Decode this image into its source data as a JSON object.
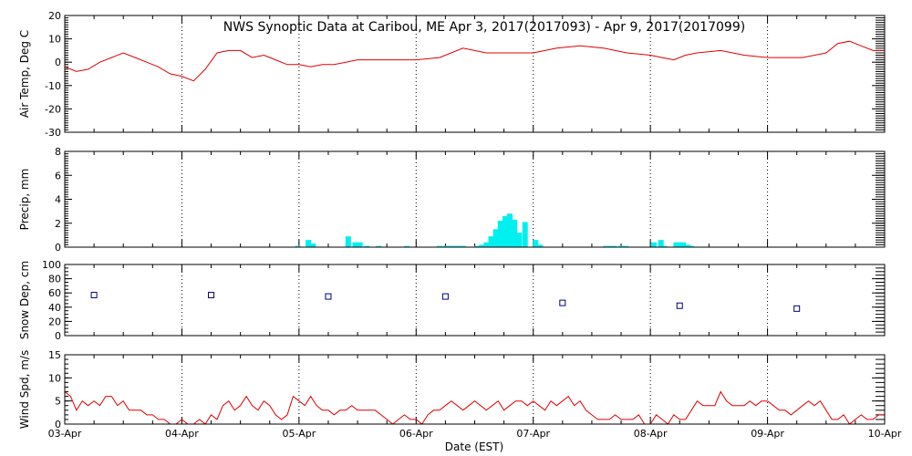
{
  "chart_data": {
    "title": "NWS Synoptic Data at Caribou, ME   Apr  3, 2017(2017093) - Apr  9, 2017(2017099)",
    "xlabel": "Date (EST)",
    "x_tick_labels": [
      "03-Apr",
      "04-Apr",
      "05-Apr",
      "06-Apr",
      "07-Apr",
      "08-Apr",
      "09-Apr",
      "10-Apr"
    ],
    "x_range_days": [
      0,
      7
    ],
    "grid": "vertical dotted lines at each day",
    "colors": {
      "temp": "#e00000",
      "precip": "#00f0f0",
      "snow": "#000080",
      "wind": "#e00000"
    },
    "panels": [
      {
        "name": "temp",
        "type": "line",
        "ylabel": "Air Temp, Deg C",
        "ylim": [
          -30,
          20
        ],
        "yticks": [
          -30,
          -20,
          -10,
          0,
          10,
          20
        ],
        "x": [
          0,
          0.1,
          0.2,
          0.3,
          0.4,
          0.5,
          0.6,
          0.7,
          0.8,
          0.9,
          1.0,
          1.1,
          1.2,
          1.3,
          1.4,
          1.5,
          1.6,
          1.7,
          1.8,
          1.9,
          2.0,
          2.1,
          2.2,
          2.3,
          2.4,
          2.5,
          2.6,
          2.7,
          2.8,
          2.9,
          3.0,
          3.2,
          3.4,
          3.6,
          3.8,
          4.0,
          4.2,
          4.4,
          4.6,
          4.8,
          5.0,
          5.1,
          5.2,
          5.3,
          5.4,
          5.6,
          5.8,
          6.0,
          6.1,
          6.2,
          6.3,
          6.5,
          6.6,
          6.7,
          6.8,
          6.9,
          7.0
        ],
        "values": [
          -2,
          -4,
          -3,
          0,
          2,
          4,
          2,
          0,
          -2,
          -5,
          -6,
          -8,
          -3,
          4,
          5,
          5,
          2,
          3,
          1,
          -1,
          -1,
          -2,
          -1,
          -1,
          0,
          1,
          1,
          1,
          1,
          1,
          1,
          2,
          6,
          4,
          4,
          4,
          6,
          7,
          6,
          4,
          3,
          2,
          1,
          3,
          4,
          5,
          3,
          2,
          2,
          2,
          2,
          4,
          8,
          9,
          7,
          5,
          5
        ]
      },
      {
        "name": "precip",
        "type": "bar",
        "ylabel": "Precip, mm",
        "ylim": [
          0,
          8
        ],
        "yticks": [
          0,
          2,
          4,
          6,
          8
        ],
        "x": [
          1.99,
          2.08,
          2.12,
          2.42,
          2.48,
          2.52,
          2.58,
          2.68,
          2.92,
          3.2,
          3.25,
          3.28,
          3.31,
          3.34,
          3.37,
          3.4,
          3.52,
          3.56,
          3.6,
          3.64,
          3.68,
          3.72,
          3.76,
          3.8,
          3.84,
          3.88,
          3.93,
          4.02,
          4.06,
          4.62,
          4.66,
          4.69,
          4.75,
          4.79,
          5.03,
          5.09,
          5.12,
          5.22,
          5.25,
          5.28,
          5.32,
          5.35
        ],
        "values": [
          0.1,
          0.6,
          0.3,
          0.9,
          0.4,
          0.4,
          0.1,
          0.1,
          0.1,
          0.1,
          0.1,
          0.1,
          0.1,
          0.1,
          0.1,
          0.1,
          0.1,
          0.2,
          0.4,
          0.9,
          1.5,
          2.2,
          2.6,
          2.8,
          2.3,
          1.2,
          2.1,
          0.6,
          0.2,
          0.1,
          0.1,
          0.1,
          0.1,
          0.1,
          0.4,
          0.6,
          0.1,
          0.4,
          0.4,
          0.4,
          0.2,
          0.1
        ]
      },
      {
        "name": "snow",
        "type": "scatter",
        "ylabel": "Snow Dep, cm",
        "ylim": [
          0,
          100
        ],
        "yticks": [
          0,
          20,
          40,
          60,
          80,
          100
        ],
        "x": [
          0.25,
          1.25,
          2.25,
          3.25,
          4.25,
          5.25,
          6.25
        ],
        "values": [
          57,
          57,
          55,
          55,
          46,
          42,
          38
        ]
      },
      {
        "name": "wind",
        "type": "line",
        "ylabel": "Wind Spd, m/s",
        "ylim": [
          0,
          15
        ],
        "yticks": [
          0,
          5,
          10,
          15
        ],
        "x": [
          0,
          0.05,
          0.1,
          0.15,
          0.2,
          0.25,
          0.3,
          0.35,
          0.4,
          0.45,
          0.5,
          0.55,
          0.6,
          0.65,
          0.7,
          0.75,
          0.8,
          0.85,
          0.9,
          0.95,
          1.0,
          1.05,
          1.1,
          1.15,
          1.2,
          1.25,
          1.3,
          1.35,
          1.4,
          1.45,
          1.5,
          1.55,
          1.6,
          1.65,
          1.7,
          1.75,
          1.8,
          1.85,
          1.9,
          1.95,
          2.0,
          2.05,
          2.1,
          2.15,
          2.2,
          2.25,
          2.3,
          2.35,
          2.4,
          2.45,
          2.5,
          2.55,
          2.6,
          2.65,
          2.7,
          2.75,
          2.8,
          2.85,
          2.9,
          2.95,
          3.0,
          3.05,
          3.1,
          3.15,
          3.2,
          3.25,
          3.3,
          3.35,
          3.4,
          3.45,
          3.5,
          3.55,
          3.6,
          3.65,
          3.7,
          3.75,
          3.8,
          3.85,
          3.9,
          3.95,
          4.0,
          4.05,
          4.1,
          4.15,
          4.2,
          4.25,
          4.3,
          4.35,
          4.4,
          4.45,
          4.5,
          4.55,
          4.6,
          4.65,
          4.7,
          4.75,
          4.8,
          4.85,
          4.9,
          4.95,
          5.0,
          5.05,
          5.1,
          5.15,
          5.2,
          5.25,
          5.3,
          5.35,
          5.4,
          5.45,
          5.5,
          5.55,
          5.6,
          5.65,
          5.7,
          5.75,
          5.8,
          5.85,
          5.9,
          5.95,
          6.0,
          6.05,
          6.1,
          6.15,
          6.2,
          6.25,
          6.3,
          6.35,
          6.4,
          6.45,
          6.5,
          6.55,
          6.6,
          6.65,
          6.7,
          6.75,
          6.8,
          6.85,
          6.9,
          6.95,
          7.0
        ],
        "values": [
          7,
          6,
          3,
          5,
          4,
          5,
          4,
          6,
          6,
          4,
          5,
          3,
          3,
          3,
          2,
          2,
          1,
          1,
          0,
          0,
          1,
          0,
          0,
          1,
          0,
          2,
          1,
          4,
          5,
          3,
          4,
          6,
          4,
          3,
          5,
          4,
          2,
          1,
          2,
          6,
          5,
          4,
          6,
          4,
          3,
          3,
          2,
          3,
          3,
          4,
          3,
          3,
          3,
          3,
          2,
          1,
          0,
          1,
          2,
          1,
          1,
          0,
          2,
          3,
          3,
          4,
          5,
          4,
          3,
          4,
          5,
          4,
          3,
          4,
          5,
          3,
          4,
          5,
          5,
          4,
          5,
          4,
          3,
          5,
          4,
          5,
          6,
          4,
          5,
          3,
          2,
          1,
          1,
          1,
          2,
          1,
          1,
          1,
          2,
          0,
          0,
          2,
          1,
          0,
          2,
          1,
          1,
          3,
          5,
          4,
          4,
          4,
          7,
          5,
          4,
          4,
          4,
          5,
          4,
          5,
          5,
          4,
          3,
          3,
          2,
          3,
          4,
          5,
          4,
          5,
          3,
          1,
          1,
          2,
          0,
          1,
          2,
          1,
          1,
          2,
          2
        ]
      }
    ]
  }
}
